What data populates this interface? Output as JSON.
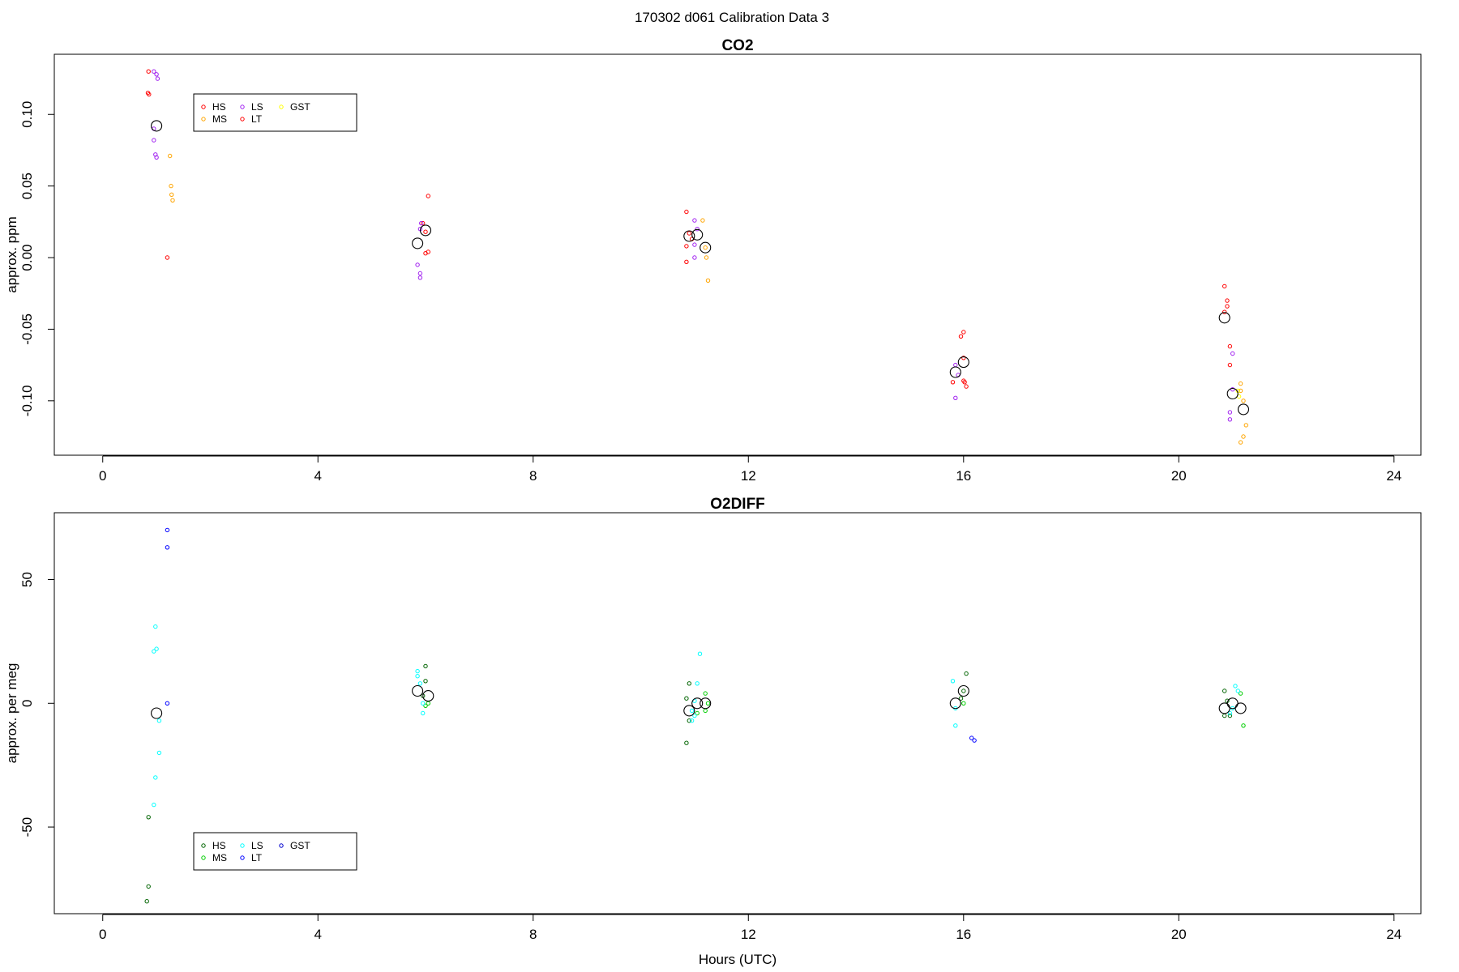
{
  "figure": {
    "title": "170302   d061   Calibration Data 3"
  },
  "chart_data": [
    {
      "type": "scatter",
      "title": "CO2",
      "xlabel": "",
      "ylabel": "approx. ppm",
      "xlim": [
        -0.9,
        24.5
      ],
      "ylim": [
        -0.138,
        0.142
      ],
      "xticks": [
        0,
        4,
        8,
        12,
        16,
        20,
        24
      ],
      "yticks": [
        -0.1,
        -0.05,
        0.0,
        0.05,
        0.1
      ],
      "ytick_labels": [
        "-0.10",
        "-0.05",
        "0.00",
        "0.05",
        "0.10"
      ],
      "grid": false,
      "legend": {
        "placement": "top-left",
        "entries": [
          {
            "name": "HS",
            "color": "#ff0000"
          },
          {
            "name": "MS",
            "color": "#ffa500"
          },
          {
            "name": "LS",
            "color": "#a020f0"
          },
          {
            "name": "LT",
            "color": "#ff0000"
          },
          {
            "name": "GST",
            "color": "#ffff00"
          }
        ]
      },
      "series": [
        {
          "name": "HS",
          "color": "#ff0000",
          "points": [
            [
              0.85,
              0.13
            ],
            [
              0.84,
              0.115
            ],
            [
              0.86,
              0.114
            ],
            [
              5.95,
              0.024
            ],
            [
              6.0,
              0.018
            ],
            [
              6.05,
              0.043
            ],
            [
              10.85,
              0.032
            ],
            [
              10.9,
              0.017
            ],
            [
              10.95,
              0.013
            ],
            [
              10.85,
              0.008
            ],
            [
              16.0,
              -0.052
            ],
            [
              15.95,
              -0.055
            ],
            [
              16.0,
              -0.07
            ],
            [
              20.85,
              -0.02
            ],
            [
              20.9,
              -0.03
            ],
            [
              20.9,
              -0.034
            ],
            [
              20.95,
              -0.062
            ],
            [
              20.95,
              -0.075
            ]
          ]
        },
        {
          "name": "MS",
          "color": "#ffa500",
          "points": [
            [
              1.25,
              0.071
            ],
            [
              1.27,
              0.05
            ],
            [
              1.28,
              0.044
            ],
            [
              1.3,
              0.04
            ],
            [
              11.15,
              0.026
            ],
            [
              11.2,
              0.007
            ],
            [
              11.22,
              0.0
            ],
            [
              11.25,
              -0.016
            ],
            [
              21.15,
              -0.088
            ],
            [
              21.15,
              -0.093
            ],
            [
              21.2,
              -0.1
            ],
            [
              21.25,
              -0.117
            ],
            [
              21.2,
              -0.125
            ],
            [
              21.15,
              -0.129
            ]
          ]
        },
        {
          "name": "LS",
          "color": "#a020f0",
          "points": [
            [
              0.95,
              0.13
            ],
            [
              1.0,
              0.128
            ],
            [
              1.02,
              0.125
            ],
            [
              0.95,
              0.09
            ],
            [
              0.95,
              0.082
            ],
            [
              0.98,
              0.072
            ],
            [
              1.0,
              0.07
            ],
            [
              5.85,
              -0.005
            ],
            [
              5.9,
              -0.011
            ],
            [
              5.9,
              -0.014
            ],
            [
              5.92,
              0.024
            ],
            [
              5.9,
              0.02
            ],
            [
              11.0,
              0.026
            ],
            [
              11.05,
              0.02
            ],
            [
              11.0,
              0.009
            ],
            [
              11.0,
              0.0
            ],
            [
              15.85,
              -0.075
            ],
            [
              15.9,
              -0.082
            ],
            [
              15.85,
              -0.098
            ],
            [
              21.0,
              -0.067
            ],
            [
              21.0,
              -0.092
            ],
            [
              20.95,
              -0.108
            ],
            [
              20.95,
              -0.113
            ]
          ]
        },
        {
          "name": "LT",
          "color": "#ff0000",
          "points": [
            [
              1.2,
              0.0
            ],
            [
              6.05,
              0.004
            ],
            [
              6.0,
              0.003
            ],
            [
              10.85,
              -0.003
            ],
            [
              15.8,
              -0.087
            ],
            [
              16.0,
              -0.086
            ],
            [
              16.02,
              -0.087
            ],
            [
              16.05,
              -0.09
            ],
            [
              20.85,
              -0.038
            ]
          ]
        },
        {
          "name": "GST",
          "color": "#ffff00",
          "points": [
            [
              21.1,
              -0.093
            ],
            [
              21.12,
              -0.097
            ]
          ]
        },
        {
          "name": "",
          "color": "#000000",
          "mean": true,
          "points": [
            [
              1.0,
              0.092
            ],
            [
              5.85,
              0.01
            ],
            [
              6.0,
              0.019
            ],
            [
              10.9,
              0.015
            ],
            [
              11.05,
              0.016
            ],
            [
              11.2,
              0.007
            ],
            [
              15.85,
              -0.08
            ],
            [
              16.0,
              -0.073
            ],
            [
              20.85,
              -0.042
            ],
            [
              21.0,
              -0.095
            ],
            [
              21.2,
              -0.106
            ]
          ]
        }
      ]
    },
    {
      "type": "scatter",
      "title": "O2DIFF",
      "xlabel": "Hours (UTC)",
      "ylabel": "approx. per meg",
      "xlim": [
        -0.9,
        24.5
      ],
      "ylim": [
        -85,
        77
      ],
      "xticks": [
        0,
        4,
        8,
        12,
        16,
        20,
        24
      ],
      "yticks": [
        -50,
        0,
        50
      ],
      "ytick_labels": [
        "-50",
        "0",
        "50"
      ],
      "grid": false,
      "legend": {
        "placement": "bottom-left",
        "entries": [
          {
            "name": "HS",
            "color": "#006400"
          },
          {
            "name": "MS",
            "color": "#00cd00"
          },
          {
            "name": "LS",
            "color": "#00ffff"
          },
          {
            "name": "LT",
            "color": "#0000ff"
          },
          {
            "name": "GST",
            "color": "#0000cd"
          }
        ]
      },
      "series": [
        {
          "name": "HS",
          "color": "#006400",
          "points": [
            [
              0.85,
              -46
            ],
            [
              0.85,
              -74
            ],
            [
              0.82,
              -80
            ],
            [
              6.0,
              15
            ],
            [
              6.0,
              9
            ],
            [
              5.95,
              3
            ],
            [
              10.9,
              8
            ],
            [
              10.85,
              2
            ],
            [
              10.85,
              -16
            ],
            [
              10.9,
              -7
            ],
            [
              16.05,
              12
            ],
            [
              16.0,
              5
            ],
            [
              15.95,
              2
            ],
            [
              20.85,
              5
            ],
            [
              20.9,
              1
            ],
            [
              20.95,
              -5
            ],
            [
              20.85,
              -5
            ]
          ]
        },
        {
          "name": "MS",
          "color": "#00cd00",
          "points": [
            [
              6.05,
              0
            ],
            [
              6.0,
              -1
            ],
            [
              11.05,
              -4
            ],
            [
              11.2,
              4
            ],
            [
              11.25,
              0
            ],
            [
              11.2,
              -3
            ],
            [
              16.0,
              0
            ],
            [
              21.15,
              4
            ],
            [
              21.2,
              -9
            ]
          ]
        },
        {
          "name": "LS",
          "color": "#00ffff",
          "points": [
            [
              0.98,
              31
            ],
            [
              0.95,
              21
            ],
            [
              1.0,
              22
            ],
            [
              1.05,
              -7
            ],
            [
              1.05,
              -20
            ],
            [
              0.98,
              -30
            ],
            [
              0.95,
              -41
            ],
            [
              5.85,
              13
            ],
            [
              5.85,
              11
            ],
            [
              5.9,
              8
            ],
            [
              5.95,
              0
            ],
            [
              5.95,
              -4
            ],
            [
              11.1,
              20
            ],
            [
              11.05,
              8
            ],
            [
              11.0,
              1
            ],
            [
              10.95,
              -3
            ],
            [
              11.0,
              -5
            ],
            [
              10.95,
              -7
            ],
            [
              15.8,
              9
            ],
            [
              15.85,
              -2
            ],
            [
              15.85,
              -9
            ],
            [
              21.05,
              7
            ],
            [
              21.1,
              5
            ],
            [
              21.0,
              -2
            ],
            [
              20.95,
              -4
            ]
          ]
        },
        {
          "name": "LT",
          "color": "#0000ff",
          "points": [
            [
              1.2,
              70
            ],
            [
              1.2,
              63
            ],
            [
              1.2,
              0
            ],
            [
              16.15,
              -14
            ],
            [
              16.2,
              -15
            ]
          ]
        },
        {
          "name": "GST",
          "color": "#0000cd",
          "points": []
        },
        {
          "name": "",
          "color": "#000000",
          "mean": true,
          "points": [
            [
              1.0,
              -4
            ],
            [
              5.85,
              5
            ],
            [
              6.05,
              3
            ],
            [
              10.9,
              -3
            ],
            [
              11.05,
              0
            ],
            [
              11.2,
              0
            ],
            [
              15.85,
              0
            ],
            [
              16.0,
              5
            ],
            [
              20.85,
              -2
            ],
            [
              21.0,
              0
            ],
            [
              21.15,
              -2
            ]
          ]
        }
      ]
    }
  ]
}
